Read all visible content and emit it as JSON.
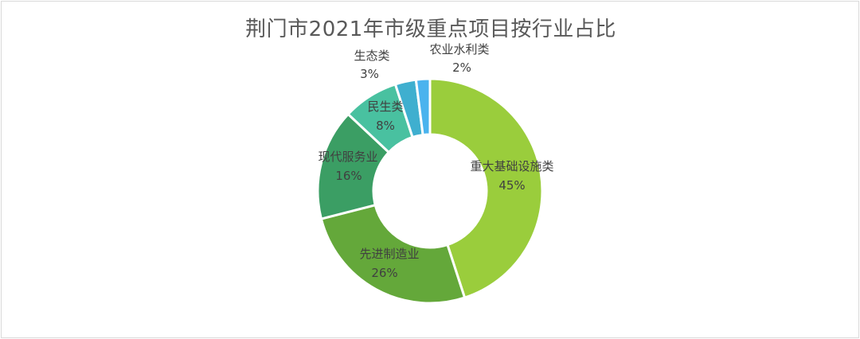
{
  "chart_data": {
    "type": "pie",
    "style": "donut",
    "title": "荆门市2021年市级重点项目按行业占比",
    "slices": [
      {
        "label": "重大基础设施类",
        "value": 45,
        "value_label": "45%",
        "color": "#9ACD3C"
      },
      {
        "label": "先进制造业",
        "value": 26,
        "value_label": "26%",
        "color": "#64A83A"
      },
      {
        "label": "现代服务业",
        "value": 16,
        "value_label": "16%",
        "color": "#3B9E64"
      },
      {
        "label": "民生类",
        "value": 8,
        "value_label": "8%",
        "color": "#49C1A0"
      },
      {
        "label": "生态类",
        "value": 3,
        "value_label": "3%",
        "color": "#3FAFCF"
      },
      {
        "label": "农业水利类",
        "value": 2,
        "value_label": "2%",
        "color": "#4AB3EE"
      }
    ]
  }
}
